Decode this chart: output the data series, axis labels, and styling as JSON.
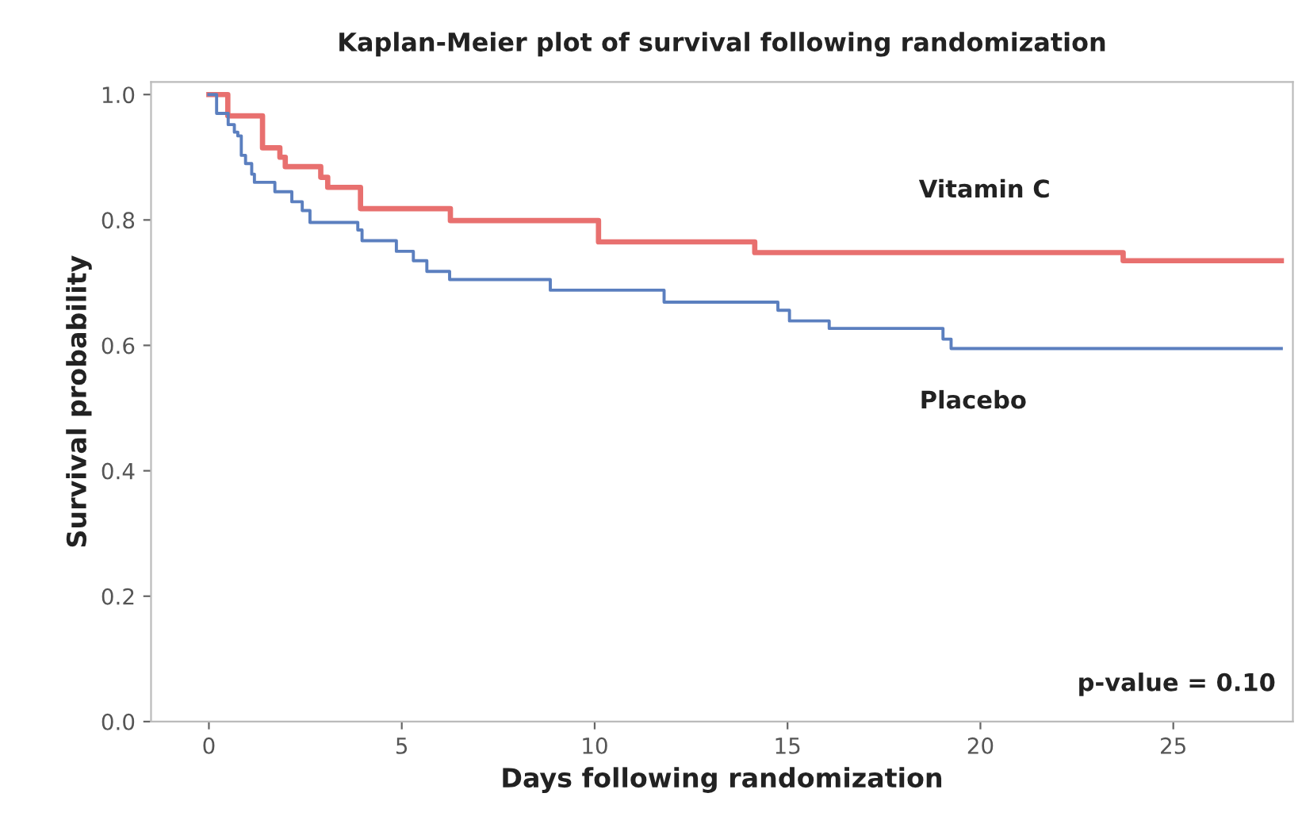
{
  "chart_data": {
    "type": "step",
    "title": "Kaplan-Meier plot of survival following randomization",
    "xlabel": "Days following randomization",
    "ylabel": "Survival probability",
    "xlim": [
      -1.5,
      28.1
    ],
    "xticks": [
      0,
      5,
      10,
      15,
      20,
      25
    ],
    "ylim": [
      0,
      1.02
    ],
    "yticks": [
      {
        "value": 0,
        "label": "0.0"
      },
      {
        "value": 0.2,
        "label": "0.2"
      },
      {
        "value": 0.4,
        "label": "0.4"
      },
      {
        "value": 0.6,
        "label": "0.6"
      },
      {
        "value": 0.8,
        "label": "0.8"
      },
      {
        "value": 1,
        "label": "1.0"
      }
    ],
    "grid": false,
    "legend": false,
    "series": [
      {
        "name": "Vitamin C",
        "color": "#e8706f",
        "x": [
          0,
          0.49,
          1.39,
          1.84,
          1.98,
          2.9,
          3.08,
          3.93,
          6.26,
          10.1,
          14.15,
          23.7,
          27.8
        ],
        "values": [
          1.0,
          0.966,
          0.915,
          0.9,
          0.885,
          0.868,
          0.852,
          0.818,
          0.799,
          0.765,
          0.748,
          0.735,
          0.735
        ]
      },
      {
        "name": "Placebo",
        "color": "#5b7fbf",
        "x": [
          0,
          0.2,
          0.5,
          0.66,
          0.75,
          0.84,
          0.95,
          1.11,
          1.18,
          1.71,
          2.15,
          2.42,
          2.62,
          3.86,
          3.97,
          4.86,
          5.3,
          5.65,
          6.24,
          8.85,
          11.8,
          14.75,
          15.05,
          16.08,
          19.03,
          19.24,
          27.8
        ],
        "values": [
          1.0,
          0.97,
          0.952,
          0.94,
          0.934,
          0.903,
          0.89,
          0.873,
          0.86,
          0.845,
          0.829,
          0.815,
          0.796,
          0.784,
          0.767,
          0.75,
          0.735,
          0.718,
          0.705,
          0.688,
          0.669,
          0.656,
          0.639,
          0.627,
          0.61,
          0.595,
          0.595
        ]
      }
    ],
    "annotations": [
      "p-value = 0.10"
    ]
  }
}
